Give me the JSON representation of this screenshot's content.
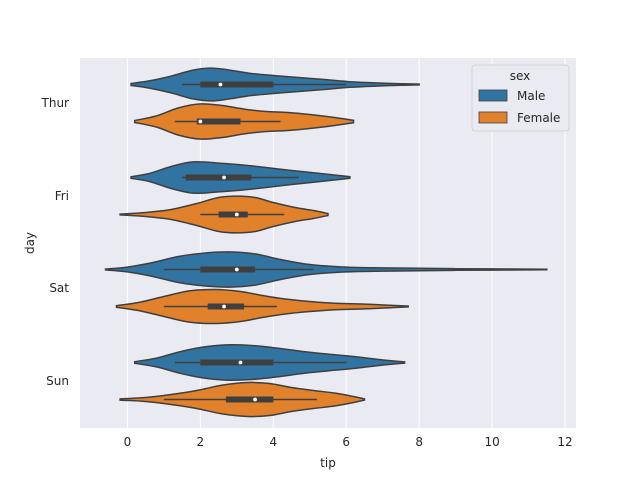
{
  "chart_data": {
    "type": "violin",
    "orientation": "horizontal",
    "xlabel": "tip",
    "ylabel": "day",
    "xlim": [
      -1.3,
      12.3
    ],
    "x_ticks": [
      0,
      2,
      4,
      6,
      8,
      10,
      12
    ],
    "categories": [
      "Thur",
      "Fri",
      "Sat",
      "Sun"
    ],
    "hue_label": "sex",
    "grid": true,
    "legend": {
      "title": "sex",
      "position": "top-right"
    },
    "series": [
      {
        "name": "Male",
        "color": "#3274a1",
        "violins": [
          {
            "category": "Thur",
            "min": 0.1,
            "max": 8.0,
            "q1": 2.0,
            "median": 2.55,
            "q3": 4.0,
            "whisker_low": 1.5,
            "whisker_high": 6.0,
            "density": [
              [
                0.1,
                0.05
              ],
              [
                0.6,
                0.18
              ],
              [
                1.2,
                0.42
              ],
              [
                1.8,
                0.72
              ],
              [
                2.3,
                0.82
              ],
              [
                2.8,
                0.72
              ],
              [
                3.4,
                0.55
              ],
              [
                4.0,
                0.45
              ],
              [
                4.7,
                0.35
              ],
              [
                5.4,
                0.25
              ],
              [
                6.1,
                0.14
              ],
              [
                6.8,
                0.08
              ],
              [
                7.5,
                0.04
              ],
              [
                8.0,
                0.02
              ]
            ]
          },
          {
            "category": "Fri",
            "min": 0.1,
            "max": 6.1,
            "q1": 1.6,
            "median": 2.65,
            "q3": 3.4,
            "whisker_low": 1.5,
            "whisker_high": 4.7,
            "density": [
              [
                0.1,
                0.04
              ],
              [
                0.6,
                0.2
              ],
              [
                1.2,
                0.55
              ],
              [
                1.8,
                0.78
              ],
              [
                2.5,
                0.72
              ],
              [
                3.2,
                0.62
              ],
              [
                3.8,
                0.5
              ],
              [
                4.5,
                0.35
              ],
              [
                5.2,
                0.22
              ],
              [
                5.7,
                0.12
              ],
              [
                6.1,
                0.04
              ]
            ]
          },
          {
            "category": "Sat",
            "min": -0.6,
            "max": 11.5,
            "q1": 2.0,
            "median": 3.0,
            "q3": 3.5,
            "whisker_low": 1.0,
            "whisker_high": 5.1,
            "density": [
              [
                -0.6,
                0.02
              ],
              [
                0.0,
                0.12
              ],
              [
                0.7,
                0.35
              ],
              [
                1.4,
                0.65
              ],
              [
                2.1,
                0.82
              ],
              [
                2.8,
                0.88
              ],
              [
                3.5,
                0.78
              ],
              [
                4.2,
                0.5
              ],
              [
                5.0,
                0.25
              ],
              [
                6.0,
                0.12
              ],
              [
                7.0,
                0.08
              ],
              [
                8.0,
                0.06
              ],
              [
                9.0,
                0.04
              ],
              [
                10.0,
                0.03
              ],
              [
                11.0,
                0.02
              ],
              [
                11.5,
                0.01
              ]
            ]
          },
          {
            "category": "Sun",
            "min": 0.2,
            "max": 7.6,
            "q1": 2.0,
            "median": 3.1,
            "q3": 4.0,
            "whisker_low": 1.3,
            "whisker_high": 6.0,
            "density": [
              [
                0.2,
                0.04
              ],
              [
                0.8,
                0.22
              ],
              [
                1.4,
                0.52
              ],
              [
                2.0,
                0.75
              ],
              [
                2.7,
                0.88
              ],
              [
                3.4,
                0.85
              ],
              [
                4.1,
                0.72
              ],
              [
                4.8,
                0.55
              ],
              [
                5.5,
                0.42
              ],
              [
                6.2,
                0.3
              ],
              [
                6.9,
                0.15
              ],
              [
                7.6,
                0.03
              ]
            ]
          }
        ]
      },
      {
        "name": "Female",
        "color": "#e1812c",
        "violins": [
          {
            "category": "Thur",
            "min": 0.2,
            "max": 6.2,
            "q1": 1.9,
            "median": 2.0,
            "q3": 3.1,
            "whisker_low": 1.3,
            "whisker_high": 4.2,
            "density": [
              [
                0.2,
                0.05
              ],
              [
                0.8,
                0.28
              ],
              [
                1.4,
                0.68
              ],
              [
                2.0,
                0.88
              ],
              [
                2.6,
                0.8
              ],
              [
                3.2,
                0.62
              ],
              [
                3.8,
                0.5
              ],
              [
                4.4,
                0.45
              ],
              [
                5.0,
                0.35
              ],
              [
                5.6,
                0.22
              ],
              [
                6.2,
                0.06
              ]
            ]
          },
          {
            "category": "Fri",
            "min": -0.2,
            "max": 5.5,
            "q1": 2.5,
            "median": 3.0,
            "q3": 3.3,
            "whisker_low": 2.0,
            "whisker_high": 4.3,
            "density": [
              [
                -0.2,
                0.02
              ],
              [
                0.5,
                0.1
              ],
              [
                1.2,
                0.25
              ],
              [
                1.9,
                0.55
              ],
              [
                2.5,
                0.85
              ],
              [
                3.0,
                0.92
              ],
              [
                3.5,
                0.85
              ],
              [
                4.0,
                0.6
              ],
              [
                4.6,
                0.35
              ],
              [
                5.1,
                0.2
              ],
              [
                5.5,
                0.05
              ]
            ]
          },
          {
            "category": "Sat",
            "min": -0.3,
            "max": 7.7,
            "q1": 2.2,
            "median": 2.65,
            "q3": 3.2,
            "whisker_low": 1.0,
            "whisker_high": 4.1,
            "density": [
              [
                -0.3,
                0.04
              ],
              [
                0.3,
                0.2
              ],
              [
                1.0,
                0.5
              ],
              [
                1.7,
                0.78
              ],
              [
                2.4,
                0.85
              ],
              [
                3.1,
                0.75
              ],
              [
                3.7,
                0.55
              ],
              [
                4.3,
                0.38
              ],
              [
                5.0,
                0.25
              ],
              [
                5.7,
                0.16
              ],
              [
                6.5,
                0.12
              ],
              [
                7.2,
                0.06
              ],
              [
                7.7,
                0.02
              ]
            ]
          },
          {
            "category": "Sun",
            "min": -0.2,
            "max": 6.5,
            "q1": 2.7,
            "median": 3.5,
            "q3": 4.0,
            "whisker_low": 1.0,
            "whisker_high": 5.2,
            "density": [
              [
                -0.2,
                0.03
              ],
              [
                0.5,
                0.1
              ],
              [
                1.2,
                0.25
              ],
              [
                1.9,
                0.45
              ],
              [
                2.6,
                0.72
              ],
              [
                3.3,
                0.85
              ],
              [
                3.9,
                0.8
              ],
              [
                4.5,
                0.6
              ],
              [
                5.1,
                0.45
              ],
              [
                5.7,
                0.32
              ],
              [
                6.2,
                0.15
              ],
              [
                6.5,
                0.03
              ]
            ]
          }
        ]
      }
    ]
  }
}
